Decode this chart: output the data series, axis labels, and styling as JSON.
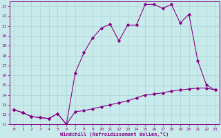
{
  "xlabel": "Windchill (Refroidissement éolien,°C)",
  "xlim": [
    -0.5,
    23.5
  ],
  "ylim": [
    11,
    23.5
  ],
  "xticks": [
    0,
    1,
    2,
    3,
    4,
    5,
    6,
    7,
    8,
    9,
    10,
    11,
    12,
    13,
    14,
    15,
    16,
    17,
    18,
    19,
    20,
    21,
    22,
    23
  ],
  "yticks": [
    11,
    12,
    13,
    14,
    15,
    16,
    17,
    18,
    19,
    20,
    21,
    22,
    23
  ],
  "bg_color": "#c8eaea",
  "grid_color": "#aad4d4",
  "line_color": "#880088",
  "line1_x": [
    0,
    1,
    2,
    3,
    4,
    5,
    6,
    7,
    8,
    9,
    10,
    11,
    12,
    13,
    14,
    15,
    16,
    17,
    18,
    19,
    20,
    21,
    22,
    23
  ],
  "line1_y": [
    12.5,
    12.2,
    11.8,
    11.7,
    11.6,
    12.1,
    11.0,
    12.3,
    12.4,
    12.6,
    12.8,
    13.0,
    13.2,
    13.4,
    13.7,
    14.0,
    14.1,
    14.2,
    14.4,
    14.5,
    14.6,
    14.7,
    14.7,
    14.5
  ],
  "line2_x": [
    0,
    1,
    2,
    3,
    4,
    5,
    6,
    7,
    8,
    9,
    10,
    11,
    12,
    13,
    14,
    15,
    16,
    17,
    18,
    19,
    20,
    21,
    22,
    23
  ],
  "line2_y": [
    12.5,
    12.2,
    11.8,
    11.7,
    11.6,
    12.1,
    11.0,
    16.2,
    18.3,
    19.8,
    20.8,
    21.2,
    19.5,
    21.1,
    21.1,
    23.2,
    23.2,
    22.8,
    23.2,
    21.3,
    22.2,
    17.5,
    15.0,
    14.5
  ]
}
